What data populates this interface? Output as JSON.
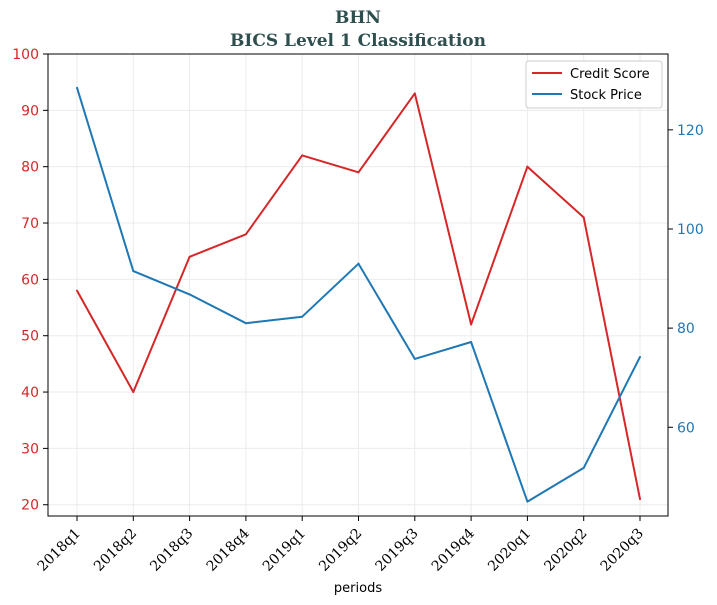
{
  "chart_data": {
    "type": "line",
    "title": "BHN",
    "subtitle": "BICS Level 1 Classification",
    "xlabel": "periods",
    "categories": [
      "2018q1",
      "2018q2",
      "2018q3",
      "2018q4",
      "2019q1",
      "2019q2",
      "2019q3",
      "2019q4",
      "2020q1",
      "2020q2",
      "2020q3"
    ],
    "left_axis": {
      "ylim": [
        18,
        100
      ],
      "ticks": [
        20,
        30,
        40,
        50,
        60,
        70,
        80,
        90,
        100
      ],
      "color": "#d62728"
    },
    "right_axis": {
      "ylim": [
        42.1,
        135.3
      ],
      "ticks": [
        60,
        80,
        100,
        120
      ],
      "color": "#1f77b4"
    },
    "grid": true,
    "legend_position": "top-right",
    "series": [
      {
        "name": "Credit Score",
        "axis": "left",
        "color": "#d62728",
        "values": [
          58,
          40,
          64,
          68,
          82,
          79,
          93,
          52,
          80,
          71,
          21
        ]
      },
      {
        "name": "Stock Price",
        "axis": "right",
        "color": "#1f77b4",
        "values": [
          128.5,
          91.5,
          86.8,
          81.0,
          82.3,
          93.0,
          73.8,
          77.2,
          45.0,
          51.8,
          74.2
        ]
      }
    ]
  }
}
